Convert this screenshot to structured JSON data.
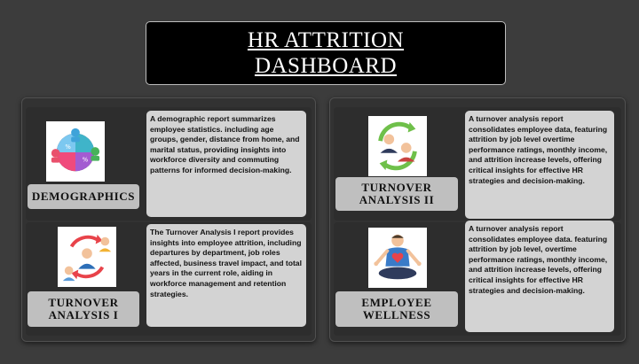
{
  "header": {
    "title_line1": "HR ATTRITION",
    "title_line2": "DASHBOARD"
  },
  "sections": {
    "demographics": {
      "label": "DEMOGRAPHICS",
      "icon": "demographics-pie-chart-icon",
      "description": "A demographic report summarizes employee statistics. including age groups, gender, distance from home, and marital status, providing insights into workforce diversity and commuting patterns for informed decision-making."
    },
    "turnover_1": {
      "label": "TURNOVER ANALYSIS I",
      "icon": "employee-turnover-cycle-icon",
      "description": "The Turnover Analysis I report provides insights into employee attrition, including departures by department, job roles affected, business travel impact, and total years in the current role, aiding in workforce management and retention strategies."
    },
    "turnover_2": {
      "label": "TURNOVER ANALYSIS II",
      "icon": "employee-exchange-icon",
      "description": "A turnover analysis report consolidates employee data, featuring attrition by job level overtime performance ratings, monthly income, and attrition increase levels, offering critical insights for effective HR strategies and decision-making."
    },
    "wellness": {
      "label": "EMPLOYEE WELLNESS",
      "icon": "meditation-wellness-icon",
      "description": "A turnover analysis report consolidates employee data. featuring attrition by job level, overtime performance ratings, monthly income, and attrition increase levels, offering critical insights for effective HR strategies and decision-making."
    }
  },
  "colors": {
    "background": "#3c3c3c",
    "panel": "#323232",
    "label_button": "#bfbfbf",
    "description_box": "#d3d3d3"
  }
}
